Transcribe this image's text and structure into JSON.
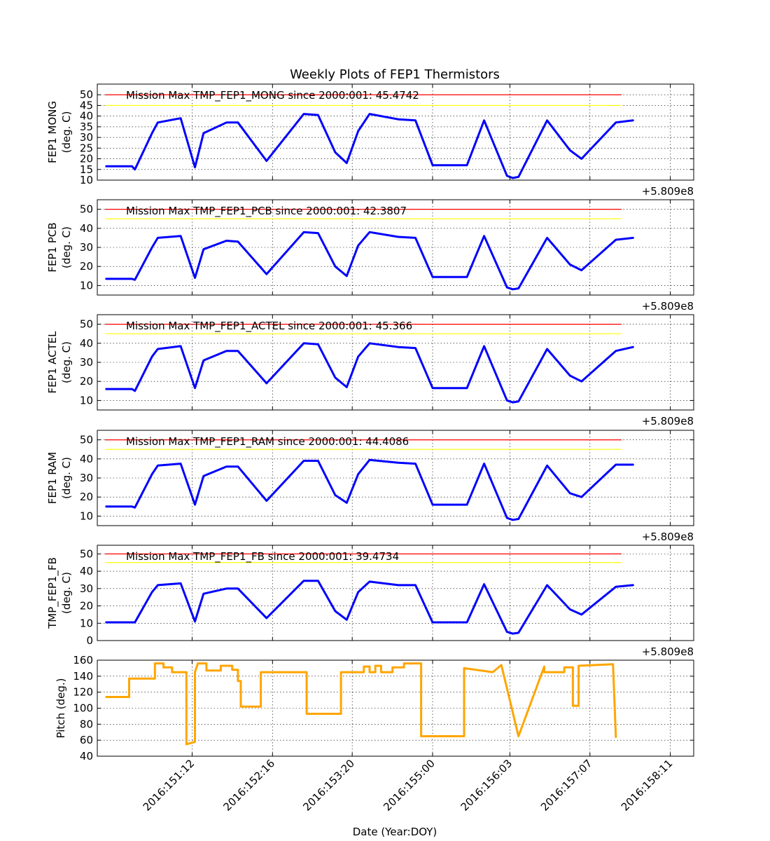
{
  "figure": {
    "title": "Weekly Plots of FEP1 Thermistors",
    "xlabel": "Date (Year:DOY)",
    "xtick_labels": [
      "2016:151:12",
      "2016:152:16",
      "2016:153:20",
      "2016:155:00",
      "2016:156:03",
      "2016:157:07",
      "2016:158:11"
    ],
    "offset_label": "+5.809e8"
  },
  "chart_data": [
    {
      "type": "line",
      "ylabel": [
        "FEP1 MONG",
        "(deg. C)"
      ],
      "ylim": [
        10,
        55
      ],
      "yticks": [
        10,
        15,
        20,
        25,
        30,
        35,
        40,
        45,
        50
      ],
      "grid": true,
      "annotation": "Mission Max TMP_FEP1_MONG since 2000:001: 45.4742",
      "limits": [
        {
          "value": 50,
          "color": "#ff0000"
        },
        {
          "value": 45,
          "color": "#ffff00"
        }
      ],
      "series": [
        {
          "color": "#0000ff",
          "x": [
            "2016:150:06",
            "2016:150:15",
            "2016:150:16",
            "2016:150:22",
            "2016:151:00",
            "2016:151:08",
            "2016:151:13",
            "2016:151:16",
            "2016:152:00",
            "2016:152:04",
            "2016:152:14",
            "2016:153:03",
            "2016:153:08",
            "2016:153:14",
            "2016:153:18",
            "2016:153:22",
            "2016:154:02",
            "2016:154:12",
            "2016:154:18",
            "2016:155:00",
            "2016:155:12",
            "2016:155:18",
            "2016:156:02",
            "2016:156:04",
            "2016:156:06",
            "2016:156:16",
            "2016:157:00",
            "2016:157:04",
            "2016:157:16",
            "2016:157:22"
          ],
          "y": [
            16.5,
            16.5,
            15,
            32,
            37,
            39,
            16,
            32,
            37,
            37,
            19,
            41,
            40.5,
            23,
            18,
            33,
            41,
            38.5,
            38,
            17,
            17,
            38,
            12,
            11,
            11.5,
            38,
            24,
            20,
            37,
            38
          ]
        }
      ]
    },
    {
      "type": "line",
      "ylabel": [
        "FEP1 PCB",
        "(deg. C)"
      ],
      "ylim": [
        5,
        55
      ],
      "yticks": [
        10,
        20,
        30,
        40,
        50
      ],
      "grid": true,
      "annotation": "Mission Max TMP_FEP1_PCB since 2000:001: 42.3807",
      "limits": [
        {
          "value": 50,
          "color": "#ff0000"
        },
        {
          "value": 45,
          "color": "#ffff00"
        }
      ],
      "series": [
        {
          "color": "#0000ff",
          "x": [
            "2016:150:06",
            "2016:150:15",
            "2016:150:16",
            "2016:150:22",
            "2016:151:00",
            "2016:151:08",
            "2016:151:13",
            "2016:151:16",
            "2016:152:00",
            "2016:152:04",
            "2016:152:14",
            "2016:153:03",
            "2016:153:08",
            "2016:153:14",
            "2016:153:18",
            "2016:153:22",
            "2016:154:02",
            "2016:154:12",
            "2016:154:18",
            "2016:155:00",
            "2016:155:12",
            "2016:155:18",
            "2016:156:02",
            "2016:156:04",
            "2016:156:06",
            "2016:156:16",
            "2016:157:00",
            "2016:157:04",
            "2016:157:16",
            "2016:157:22"
          ],
          "y": [
            13.5,
            13.5,
            13,
            30,
            35,
            36,
            14,
            29,
            33.5,
            33,
            16,
            38,
            37.5,
            20,
            15,
            31,
            38,
            35.5,
            35,
            14.5,
            14.5,
            36,
            9,
            8,
            8.5,
            35,
            21,
            18,
            34,
            35
          ]
        }
      ]
    },
    {
      "type": "line",
      "ylabel": [
        "FEP1 ACTEL",
        "(deg. C)"
      ],
      "ylim": [
        5,
        55
      ],
      "yticks": [
        10,
        20,
        30,
        40,
        50
      ],
      "grid": true,
      "annotation": "Mission Max TMP_FEP1_ACTEL since 2000:001: 45.366",
      "limits": [
        {
          "value": 50,
          "color": "#ff0000"
        },
        {
          "value": 45,
          "color": "#ffff00"
        }
      ],
      "series": [
        {
          "color": "#0000ff",
          "x": [
            "2016:150:06",
            "2016:150:15",
            "2016:150:16",
            "2016:150:22",
            "2016:151:00",
            "2016:151:08",
            "2016:151:13",
            "2016:151:16",
            "2016:152:00",
            "2016:152:04",
            "2016:152:14",
            "2016:153:03",
            "2016:153:08",
            "2016:153:14",
            "2016:153:18",
            "2016:153:22",
            "2016:154:02",
            "2016:154:12",
            "2016:154:18",
            "2016:155:00",
            "2016:155:12",
            "2016:155:18",
            "2016:156:02",
            "2016:156:04",
            "2016:156:06",
            "2016:156:16",
            "2016:157:00",
            "2016:157:04",
            "2016:157:16",
            "2016:157:22"
          ],
          "y": [
            16,
            16,
            15,
            33,
            37,
            38.5,
            16.5,
            31,
            36,
            36,
            19,
            40,
            39.5,
            22,
            17,
            33,
            40,
            38,
            37.5,
            16.5,
            16.5,
            38.5,
            10,
            9,
            9.5,
            37,
            23,
            20,
            36,
            38
          ]
        }
      ]
    },
    {
      "type": "line",
      "ylabel": [
        "FEP1 RAM",
        "(deg. C)"
      ],
      "ylim": [
        5,
        55
      ],
      "yticks": [
        10,
        20,
        30,
        40,
        50
      ],
      "grid": true,
      "annotation": "Mission Max TMP_FEP1_RAM since 2000:001: 44.4086",
      "limits": [
        {
          "value": 50,
          "color": "#ff0000"
        },
        {
          "value": 45,
          "color": "#ffff00"
        }
      ],
      "series": [
        {
          "color": "#0000ff",
          "x": [
            "2016:150:06",
            "2016:150:15",
            "2016:150:16",
            "2016:150:22",
            "2016:151:00",
            "2016:151:08",
            "2016:151:13",
            "2016:151:16",
            "2016:152:00",
            "2016:152:04",
            "2016:152:14",
            "2016:153:03",
            "2016:153:08",
            "2016:153:14",
            "2016:153:18",
            "2016:153:22",
            "2016:154:02",
            "2016:154:12",
            "2016:154:18",
            "2016:155:00",
            "2016:155:12",
            "2016:155:18",
            "2016:156:02",
            "2016:156:04",
            "2016:156:06",
            "2016:156:16",
            "2016:157:00",
            "2016:157:04",
            "2016:157:16",
            "2016:157:22"
          ],
          "y": [
            15,
            15,
            14.5,
            32,
            36.5,
            37.5,
            16,
            31,
            36,
            36,
            18,
            39,
            39,
            21,
            17,
            32,
            39.5,
            38,
            37.5,
            16,
            16,
            37.5,
            9,
            8,
            8.5,
            36.5,
            22,
            20,
            37,
            37
          ]
        }
      ]
    },
    {
      "type": "line",
      "ylabel": [
        "TMP_FEP1_FB",
        "(deg. C)"
      ],
      "ylim": [
        0,
        55
      ],
      "yticks": [
        0,
        10,
        20,
        30,
        40,
        50
      ],
      "grid": true,
      "annotation": "Mission Max TMP_FEP1_FB since 2000:001: 39.4734",
      "limits": [
        {
          "value": 50,
          "color": "#ff0000"
        },
        {
          "value": 45,
          "color": "#ffff00"
        }
      ],
      "series": [
        {
          "color": "#0000ff",
          "x": [
            "2016:150:06",
            "2016:150:15",
            "2016:150:16",
            "2016:150:22",
            "2016:151:00",
            "2016:151:08",
            "2016:151:13",
            "2016:151:16",
            "2016:152:00",
            "2016:152:04",
            "2016:152:14",
            "2016:153:03",
            "2016:153:08",
            "2016:153:14",
            "2016:153:18",
            "2016:153:22",
            "2016:154:02",
            "2016:154:12",
            "2016:154:18",
            "2016:155:00",
            "2016:155:12",
            "2016:155:18",
            "2016:156:02",
            "2016:156:04",
            "2016:156:06",
            "2016:156:16",
            "2016:157:00",
            "2016:157:04",
            "2016:157:16",
            "2016:157:22"
          ],
          "y": [
            10.5,
            10.5,
            10.5,
            28,
            32,
            33,
            11,
            27,
            30,
            30,
            13,
            34.5,
            34.5,
            17,
            12,
            28,
            34,
            32,
            32,
            10.5,
            10.5,
            32.5,
            5,
            4,
            4.5,
            32,
            18,
            15,
            31,
            32
          ]
        }
      ]
    },
    {
      "type": "line",
      "ylabel": [
        "Pitch (deg.)"
      ],
      "ylim": [
        40,
        160
      ],
      "yticks": [
        40,
        60,
        80,
        100,
        120,
        140,
        160
      ],
      "grid": true,
      "series": [
        {
          "color": "#ffa500",
          "x": [
            "2016:150:06",
            "2016:150:14",
            "2016:150:14",
            "2016:150:23",
            "2016:150:23",
            "2016:151:02",
            "2016:151:02",
            "2016:151:05",
            "2016:151:05",
            "2016:151:10",
            "2016:151:10",
            "2016:151:10",
            "2016:151:10",
            "2016:151:13",
            "2016:151:13",
            "2016:151:13",
            "2016:151:14",
            "2016:151:17",
            "2016:151:17",
            "2016:151:22",
            "2016:151:22",
            "2016:152:02",
            "2016:152:02",
            "2016:152:04",
            "2016:152:04",
            "2016:152:05",
            "2016:152:05",
            "2016:152:12",
            "2016:152:12",
            "2016:153:04",
            "2016:153:04",
            "2016:153:16",
            "2016:153:16",
            "2016:154:00",
            "2016:154:00",
            "2016:154:02",
            "2016:154:02",
            "2016:154:04",
            "2016:154:04",
            "2016:154:06",
            "2016:154:06",
            "2016:154:10",
            "2016:154:10",
            "2016:154:14",
            "2016:154:14",
            "2016:154:20",
            "2016:154:20",
            "2016:155:03",
            "2016:155:11",
            "2016:155:11",
            "2016:155:21",
            "2016:155:21",
            "2016:156:00",
            "2016:156:00",
            "2016:156:06",
            "2016:156:06",
            "2016:156:15",
            "2016:156:15",
            "2016:156:22",
            "2016:156:22",
            "2016:157:01",
            "2016:157:01",
            "2016:157:03",
            "2016:157:03",
            "2016:157:15",
            "2016:157:16"
          ],
          "y": [
            114,
            114,
            137,
            137,
            156,
            156,
            151,
            151,
            145,
            145,
            145,
            145,
            55,
            58,
            58,
            145,
            156,
            156,
            147,
            147,
            153,
            153,
            148,
            148,
            134,
            134,
            102,
            102,
            145,
            145,
            93,
            93,
            145,
            145,
            152,
            152,
            145,
            145,
            153,
            153,
            145,
            145,
            151,
            151,
            156,
            156,
            65,
            65,
            65,
            150,
            145,
            145,
            154,
            154,
            65,
            65,
            152,
            145,
            145,
            151,
            151,
            103,
            103,
            153,
            155,
            64
          ]
        }
      ]
    }
  ]
}
